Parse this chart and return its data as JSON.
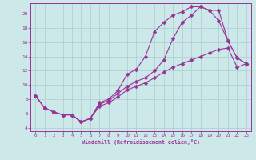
{
  "xlabel": "Windchill (Refroidissement éolien,°C)",
  "xlim": [
    -0.5,
    23.5
  ],
  "ylim": [
    3.5,
    21.5
  ],
  "xticks": [
    0,
    1,
    2,
    3,
    4,
    5,
    6,
    7,
    8,
    9,
    10,
    11,
    12,
    13,
    14,
    15,
    16,
    17,
    18,
    19,
    20,
    21,
    22,
    23
  ],
  "yticks": [
    4,
    6,
    8,
    10,
    12,
    14,
    16,
    18,
    20
  ],
  "bg_color": "#cce8e8",
  "line_color": "#993399",
  "grid_color": "#aacece",
  "line1_x": [
    0,
    1,
    2,
    3,
    4,
    5,
    6,
    7,
    8,
    9,
    10,
    11,
    12,
    13,
    14,
    15,
    16,
    17,
    18,
    19,
    20,
    21,
    22,
    23
  ],
  "line1_y": [
    8.5,
    6.8,
    6.2,
    5.8,
    5.8,
    4.8,
    5.3,
    7.5,
    8.0,
    9.2,
    11.5,
    12.2,
    14.0,
    17.5,
    18.8,
    19.8,
    20.3,
    21.0,
    21.0,
    20.5,
    19.0,
    16.2,
    13.8,
    13.0
  ],
  "line2_x": [
    0,
    1,
    2,
    3,
    4,
    5,
    6,
    7,
    8,
    9,
    10,
    11,
    12,
    13,
    14,
    15,
    16,
    17,
    18,
    19,
    20,
    21,
    22,
    23
  ],
  "line2_y": [
    8.5,
    6.8,
    6.2,
    5.8,
    5.8,
    4.8,
    5.3,
    7.3,
    7.8,
    8.8,
    9.8,
    10.5,
    11.0,
    12.0,
    13.5,
    16.5,
    18.8,
    19.8,
    21.0,
    20.5,
    20.5,
    16.2,
    13.8,
    13.0
  ],
  "line3_x": [
    0,
    1,
    2,
    3,
    4,
    5,
    6,
    7,
    8,
    9,
    10,
    11,
    12,
    13,
    14,
    15,
    16,
    17,
    18,
    19,
    20,
    21,
    22,
    23
  ],
  "line3_y": [
    8.5,
    6.8,
    6.2,
    5.8,
    5.8,
    4.8,
    5.3,
    7.0,
    7.5,
    8.3,
    9.3,
    9.8,
    10.3,
    11.0,
    11.8,
    12.5,
    13.0,
    13.5,
    14.0,
    14.5,
    15.0,
    15.2,
    12.5,
    13.0
  ]
}
